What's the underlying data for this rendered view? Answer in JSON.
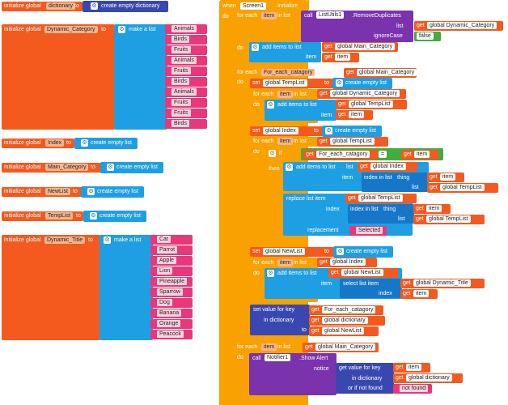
{
  "init_dictionary": {
    "init_label": "initialize global",
    "var_name": "dictionary",
    "to_label": "to",
    "value_label": "create empty dictionary"
  },
  "init_dynamic_category": {
    "init_label": "initialize global",
    "var_name": "Dynamic_Category",
    "to_label": "to",
    "make_list_label": "make a list",
    "items": [
      "Animals",
      "Birds",
      "Fruits",
      "Animals",
      "Fruits",
      "Birds",
      "Animals",
      "Fruits",
      "Fruits",
      "Birds"
    ]
  },
  "init_index": {
    "init_label": "initialize global",
    "var_name": "Index",
    "to_label": "to",
    "value_label": "create empty list"
  },
  "init_main_category": {
    "init_label": "initialize global",
    "var_name": "Main_Category",
    "to_label": "to",
    "value_label": "create empty list"
  },
  "init_newlist": {
    "init_label": "initialize global",
    "var_name": "NewList",
    "to_label": "to",
    "value_label": "create empty list"
  },
  "init_templist": {
    "init_label": "initialize global",
    "var_name": "TempList",
    "to_label": "to",
    "value_label": "create empty list"
  },
  "init_dynamic_title": {
    "init_label": "initialize global",
    "var_name": "Dynamic_Title",
    "to_label": "to",
    "make_list_label": "make a list",
    "items": [
      "Cat",
      "Parrot",
      "Apple",
      "Lion",
      "Pineapple",
      "Sparrow",
      "Dog",
      "Banana",
      "Orange",
      "Peacock"
    ]
  },
  "event": {
    "when_label": "when",
    "component": "Screen1",
    "event_name": ".Initialize",
    "do_label": "do"
  },
  "loop1": {
    "for_each": "for each",
    "var": "item",
    "in_list": "in list",
    "call": "call",
    "component": "ListUtils1",
    "method": ".RemoveDuplicates",
    "list_label": "list",
    "get": "get",
    "list_var": "global Dynamic_Category",
    "ignorecase_label": "ignoreCase",
    "ignorecase_value": "false",
    "do_label": "do",
    "add_items": "add items to list",
    "list_kw": "list",
    "main_var": "global Main_Category",
    "item_kw": "item",
    "item_var": "item"
  },
  "loop2": {
    "for_each": "for each",
    "var": "For_each_catagory",
    "in_list": "in list",
    "get": "get",
    "list_var": "global Main_Category",
    "do_label": "do",
    "set_label": "set",
    "set_var": "global TempList",
    "to_label": "to",
    "create_empty": "create empty list",
    "inner_for": "for each",
    "inner_var": "item",
    "inner_in": "in list",
    "inner_list": "global Dynamic_Category",
    "inner_do": "do",
    "add_items": "add items to list",
    "list_kw": "list",
    "templist_var": "global TempList",
    "item_kw": "item",
    "item_var": "item",
    "set2_var": "global Index",
    "for3_var": "item",
    "for3_list": "global TempList",
    "if_label": "if",
    "cmp_left": "For_each_catagory",
    "cmp_op": "=",
    "cmp_right": "item",
    "then_label": "then",
    "add_index_list": "global Index",
    "index_in_list": "index in list",
    "thing_kw": "thing",
    "thing_var": "item",
    "templist2": "global TempList",
    "replace_label": "replace list item",
    "replace_list": "global TempList",
    "index_kw": "index",
    "replacement_kw": "replacement",
    "replacement_value": "Selected",
    "set3_var": "global NewList",
    "for4_var": "item",
    "for4_list": "global Index",
    "add_newlist": "global NewList",
    "select_label": "select list item",
    "select_list": "global Dynamic_Title",
    "index_var": "item",
    "setval_label": "set value for key",
    "setval_key": "For_each_catagory",
    "in_dict": "in dictionary",
    "dict_var": "global dictionary",
    "to_kw": "to",
    "to_var": "global NewList"
  },
  "loop3": {
    "for_each": "for each",
    "var": "item",
    "in_list": "in list",
    "get": "get",
    "list_var": "global Main_Category",
    "do_label": "do",
    "call": "call",
    "component": "Notifier1",
    "method": ".Show Alert",
    "notice": "notice",
    "getval": "get value for key",
    "key_var": "item",
    "in_dict": "in dictionary",
    "dict_var": "global dictionary",
    "notfound": "or if not found",
    "notfound_value": "not found"
  }
}
